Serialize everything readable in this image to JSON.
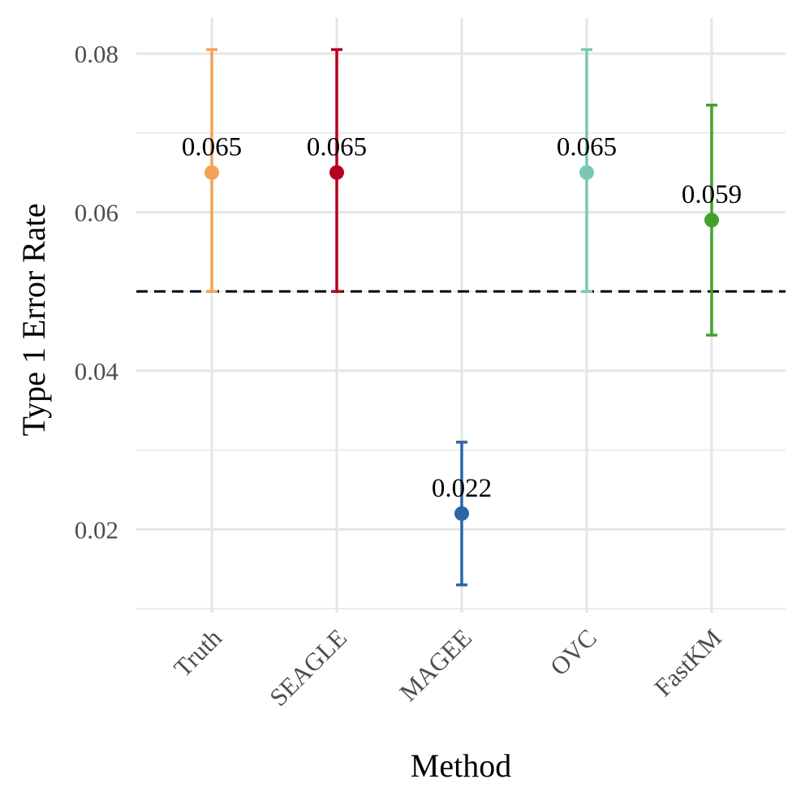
{
  "chart_data": {
    "type": "scatter",
    "xlabel": "Method",
    "ylabel": "Type 1 Error Rate",
    "ylim": [
      0.0095,
      0.0845
    ],
    "y_ticks": [
      0.02,
      0.04,
      0.06,
      0.08
    ],
    "y_tick_labels": [
      "0.02",
      "0.04",
      "0.06",
      "0.08"
    ],
    "categories": [
      "Truth",
      "SEAGLE",
      "MAGEE",
      "OVC",
      "FastKM"
    ],
    "series": [
      {
        "values": [
          0.065,
          0.065,
          0.022,
          0.065,
          0.059
        ],
        "lower": [
          0.05,
          0.05,
          0.013,
          0.05,
          0.0445
        ],
        "upper": [
          0.0805,
          0.0805,
          0.031,
          0.0805,
          0.0735
        ],
        "labels": [
          "0.065",
          "0.065",
          "0.022",
          "0.065",
          "0.059"
        ],
        "colors": [
          "#F4A259",
          "#B5001F",
          "#2B66A8",
          "#79C7B4",
          "#44A02C"
        ]
      }
    ],
    "reference_line": {
      "y": 0.05,
      "style": "dashed",
      "color": "#000000"
    },
    "grid": true,
    "legend": "none"
  }
}
